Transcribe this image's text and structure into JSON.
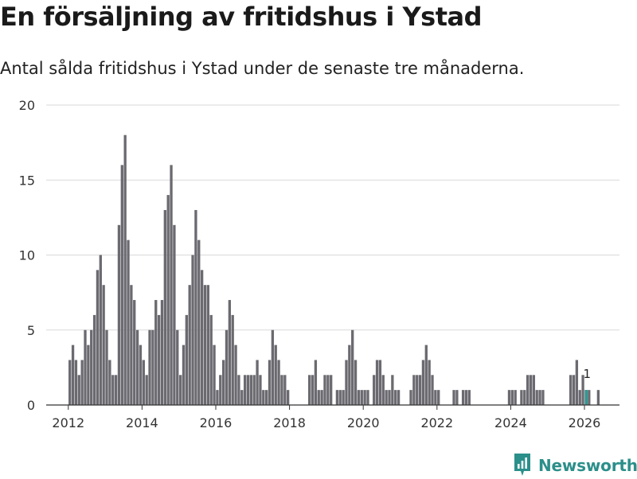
{
  "title": "En försäljning av fritidshus i Ystad",
  "subtitle": "Antal sålda fritidshus i Ystad under de senaste tre månaderna.",
  "brand": {
    "name": "Newsworthy",
    "icon": "newsworthy-logo-icon",
    "color": "#2b8f8a"
  },
  "colors": {
    "bar": "#6b6a70",
    "highlight": "#2b9a93",
    "grid": "#d9d9d9",
    "axis": "#333333"
  },
  "chart_data": {
    "type": "bar",
    "title": "En försäljning av fritidshus i Ystad",
    "xlabel": "",
    "ylabel": "",
    "ylim": [
      0,
      20
    ],
    "yticks": [
      0,
      5,
      10,
      15,
      20
    ],
    "xlim": [
      2011.4,
      2026.95
    ],
    "xticks": [
      2012,
      2014,
      2016,
      2018,
      2020,
      2022,
      2024,
      2026
    ],
    "grid": true,
    "start": 2012,
    "step_months": 1,
    "values": [
      3,
      4,
      3,
      2,
      3,
      5,
      4,
      5,
      6,
      9,
      10,
      8,
      5,
      3,
      2,
      2,
      12,
      16,
      18,
      11,
      8,
      7,
      5,
      4,
      3,
      2,
      5,
      5,
      7,
      6,
      7,
      13,
      14,
      16,
      12,
      5,
      2,
      4,
      6,
      8,
      10,
      13,
      11,
      9,
      8,
      8,
      6,
      4,
      1,
      2,
      3,
      5,
      7,
      6,
      4,
      2,
      1,
      2,
      2,
      2,
      2,
      3,
      2,
      1,
      1,
      3,
      5,
      4,
      3,
      2,
      2,
      1,
      0,
      0,
      0,
      0,
      0,
      0,
      2,
      2,
      3,
      1,
      1,
      2,
      2,
      2,
      0,
      1,
      1,
      1,
      3,
      4,
      5,
      3,
      1,
      1,
      1,
      1,
      0,
      2,
      3,
      3,
      2,
      1,
      1,
      2,
      1,
      1,
      0,
      0,
      0,
      1,
      2,
      2,
      2,
      3,
      4,
      3,
      2,
      1,
      1,
      0,
      0,
      0,
      0,
      1,
      1,
      0,
      1,
      1,
      1,
      0,
      0,
      0,
      0,
      0,
      0,
      0,
      0,
      0,
      0,
      0,
      0,
      1,
      1,
      1,
      0,
      1,
      1,
      2,
      2,
      2,
      1,
      1,
      1,
      0,
      0,
      0,
      0,
      0,
      0,
      0,
      0,
      2,
      2,
      3,
      1,
      2,
      1,
      1,
      0,
      0,
      1
    ],
    "last_value": 1,
    "last_label": "1",
    "last_x": 2026.05
  }
}
